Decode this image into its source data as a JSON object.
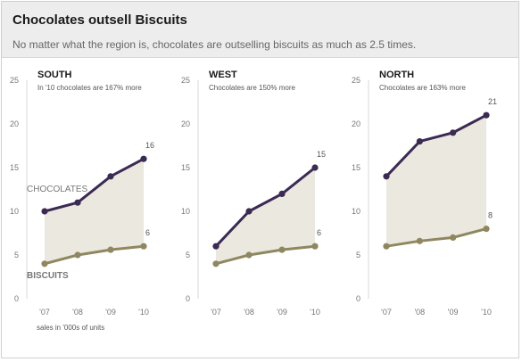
{
  "header": {
    "title": "Chocolates outsell Biscuits",
    "subtitle": "No matter what the region is, chocolates are outselling biscuits as much as 2.5 times."
  },
  "footnote": "sales in '000s of units",
  "colors": {
    "chocolates": "#3b2a52",
    "biscuits": "#8f8760",
    "fill": "#ebe8df",
    "axis": "#d9d9d9",
    "tick_text": "#777777"
  },
  "chart_data": [
    {
      "type": "line",
      "title": "SOUTH",
      "subtitle": "In '10 chocolates are 167% more",
      "categories": [
        "'07",
        "'08",
        "'09",
        "'10"
      ],
      "yticks": [
        0,
        5,
        10,
        15,
        20,
        25
      ],
      "ylim": [
        0,
        25
      ],
      "series": [
        {
          "name": "CHOCOLATES",
          "values": [
            10,
            11,
            14,
            16
          ],
          "end_label": "16"
        },
        {
          "name": "BISCUITS",
          "values": [
            4,
            5,
            5.6,
            6
          ],
          "end_label": "6"
        }
      ]
    },
    {
      "type": "line",
      "title": "WEST",
      "subtitle": "Chocolates are 150% more",
      "categories": [
        "'07",
        "'08",
        "'09",
        "'10"
      ],
      "yticks": [
        0,
        5,
        10,
        15,
        20,
        25
      ],
      "ylim": [
        0,
        25
      ],
      "series": [
        {
          "values": [
            6,
            10,
            12,
            15
          ],
          "end_label": "15"
        },
        {
          "values": [
            4,
            5,
            5.6,
            6
          ],
          "end_label": "6"
        }
      ]
    },
    {
      "type": "line",
      "title": "NORTH",
      "subtitle": "Chocolates are 163% more",
      "categories": [
        "'07",
        "'08",
        "'09",
        "'10"
      ],
      "yticks": [
        0,
        5,
        10,
        15,
        20,
        25
      ],
      "ylim": [
        0,
        25
      ],
      "series": [
        {
          "values": [
            14,
            18,
            19,
            21
          ],
          "end_label": "21"
        },
        {
          "values": [
            6,
            6.6,
            7,
            8
          ],
          "end_label": "8"
        }
      ]
    }
  ]
}
